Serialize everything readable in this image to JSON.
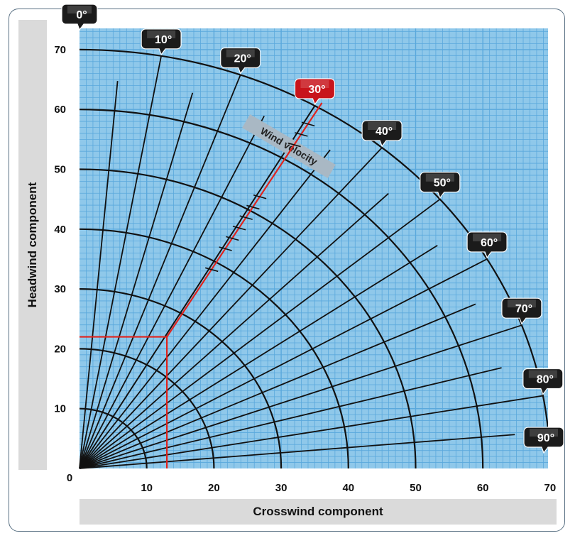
{
  "chart_data": {
    "type": "crosswind-component-polar",
    "xlabel": "Crosswind component",
    "ylabel": "Headwind component",
    "xlim": [
      0,
      70
    ],
    "ylim": [
      0,
      70
    ],
    "x_ticks": [
      "0",
      "10",
      "20",
      "30",
      "40",
      "50",
      "60",
      "70"
    ],
    "y_ticks": [
      "10",
      "20",
      "30",
      "40",
      "50",
      "60",
      "70"
    ],
    "grid": true,
    "minor_grid_step": 1,
    "velocity_arcs": [
      10,
      20,
      30,
      40,
      50,
      60,
      70
    ],
    "angle_rays": [
      {
        "angle": 0,
        "label": "0°",
        "length": 70,
        "labeled": true
      },
      {
        "angle": 5,
        "length": 65,
        "labeled": false
      },
      {
        "angle": 10,
        "label": "10°",
        "length": 70,
        "labeled": true
      },
      {
        "angle": 15,
        "length": 65,
        "labeled": false
      },
      {
        "angle": 20,
        "label": "20°",
        "length": 70,
        "labeled": true
      },
      {
        "angle": 25,
        "length": 65,
        "labeled": false
      },
      {
        "angle": 30,
        "label": "30°",
        "length": 70,
        "labeled": true,
        "highlighted": true
      },
      {
        "angle": 35,
        "length": 65,
        "labeled": false
      },
      {
        "angle": 40,
        "label": "40°",
        "length": 70,
        "labeled": true
      },
      {
        "angle": 45,
        "length": 65,
        "labeled": false
      },
      {
        "angle": 50,
        "label": "50°",
        "length": 70,
        "labeled": true
      },
      {
        "angle": 55,
        "length": 65,
        "labeled": false
      },
      {
        "angle": 60,
        "label": "60°",
        "length": 70,
        "labeled": true
      },
      {
        "angle": 65,
        "length": 65,
        "labeled": false
      },
      {
        "angle": 70,
        "label": "70°",
        "length": 70,
        "labeled": true
      },
      {
        "angle": 75,
        "length": 65,
        "labeled": false
      },
      {
        "angle": 80,
        "label": "80°",
        "length": 70,
        "labeled": true
      },
      {
        "angle": 85,
        "length": 65,
        "labeled": false
      },
      {
        "angle": 90,
        "label": "90°",
        "length": 70,
        "labeled": true
      }
    ],
    "annotation": {
      "text": "Wind velocity"
    },
    "highlight": {
      "angle": 30,
      "velocity": 25,
      "headwind": 22,
      "crosswind": 13,
      "tick_velocities": [
        38,
        42,
        44,
        46,
        48,
        50,
        52,
        62,
        64,
        66
      ]
    },
    "colors": {
      "plot_background": "#8fc8ea",
      "grid": "#5aa8dc",
      "lines": "#111111",
      "highlight": "#e0231d",
      "label_badge": "#1b1b1b",
      "highlight_badge": "#c8141b",
      "annotation_band": "#a9b8c4",
      "axis_label_band": "#dadada"
    }
  }
}
